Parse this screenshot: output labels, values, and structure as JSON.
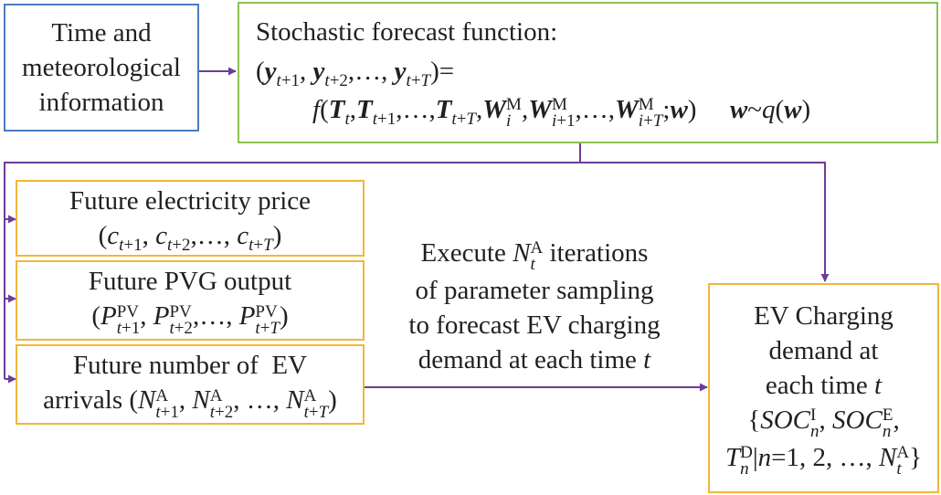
{
  "time_box": {
    "lines": [
      "Time and",
      "meteorological",
      "information"
    ]
  },
  "forecast_box": {
    "title": "Stochastic forecast function:"
  },
  "price_box": {
    "title": "Future electricity price"
  },
  "pvg_box": {
    "title": "Future PVG output"
  },
  "ev_arrivals_box": {
    "title": "Future number of  EV",
    "prefix": "arrivals"
  },
  "execute_label": {
    "line1_pre": "Execute",
    "line1_post": "iterations",
    "line2": "of parameter sampling",
    "line3": "to forecast EV charging",
    "line4": "demand at each time"
  },
  "demand_box": {
    "lines": [
      "EV Charging",
      "demand at",
      "each time"
    ]
  },
  "colors": {
    "blue": "#4a7bc0",
    "green": "#8cc152",
    "orange": "#f0b73a",
    "arrow": "#6a3d9a"
  }
}
